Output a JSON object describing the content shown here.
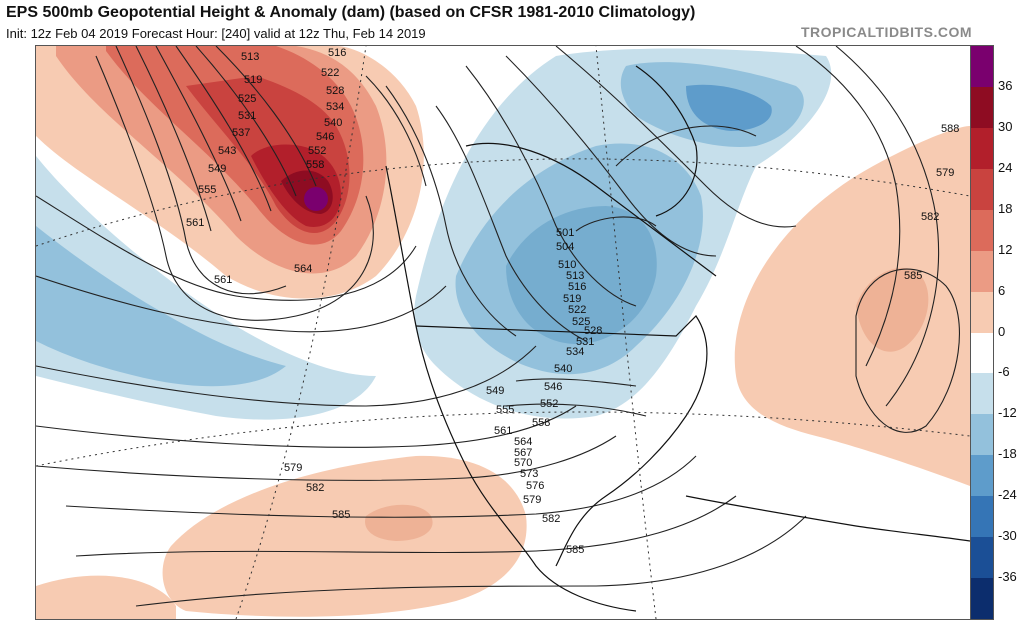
{
  "header": {
    "title": "EPS 500mb Geopotential Height & Anomaly (dam) (based on CFSR 1981-2010 Climatology)",
    "subtitle": "Init: 12z Feb 04 2019   Forecast Hour: [240]   valid at 12z Thu, Feb 14 2019",
    "brand": "TROPICALTIDBITS.COM"
  },
  "colorbar": {
    "labels": [
      "36",
      "30",
      "24",
      "18",
      "12",
      "6",
      "0",
      "-6",
      "-12",
      "-18",
      "-24",
      "-30",
      "-36"
    ],
    "segments": [
      "#7a006e",
      "#8e0c22",
      "#b21f2b",
      "#c9433f",
      "#dc6b5b",
      "#eb9b84",
      "#f7cbb2",
      "#ffffff",
      "#c6dfeb",
      "#93c1dc",
      "#5e9ccb",
      "#3575b6",
      "#1b4f96",
      "#0c2d6d"
    ]
  },
  "contours": {
    "labels": [
      "513",
      "516",
      "519",
      "522",
      "525",
      "528",
      "531",
      "534",
      "537",
      "540",
      "543",
      "546",
      "549",
      "552",
      "555",
      "558",
      "561",
      "564",
      "561",
      "579",
      "582",
      "585",
      "588",
      "579",
      "582",
      "585",
      "501",
      "504",
      "510",
      "513",
      "516",
      "519",
      "522",
      "525",
      "528",
      "531",
      "534",
      "540",
      "546",
      "549",
      "552",
      "555",
      "558",
      "561",
      "564",
      "567",
      "570",
      "573",
      "576",
      "579",
      "582",
      "585"
    ]
  },
  "colors": {
    "positive_anomaly": "#d9534a",
    "negative_anomaly": "#6fa6d2",
    "land_border": "#111111"
  }
}
